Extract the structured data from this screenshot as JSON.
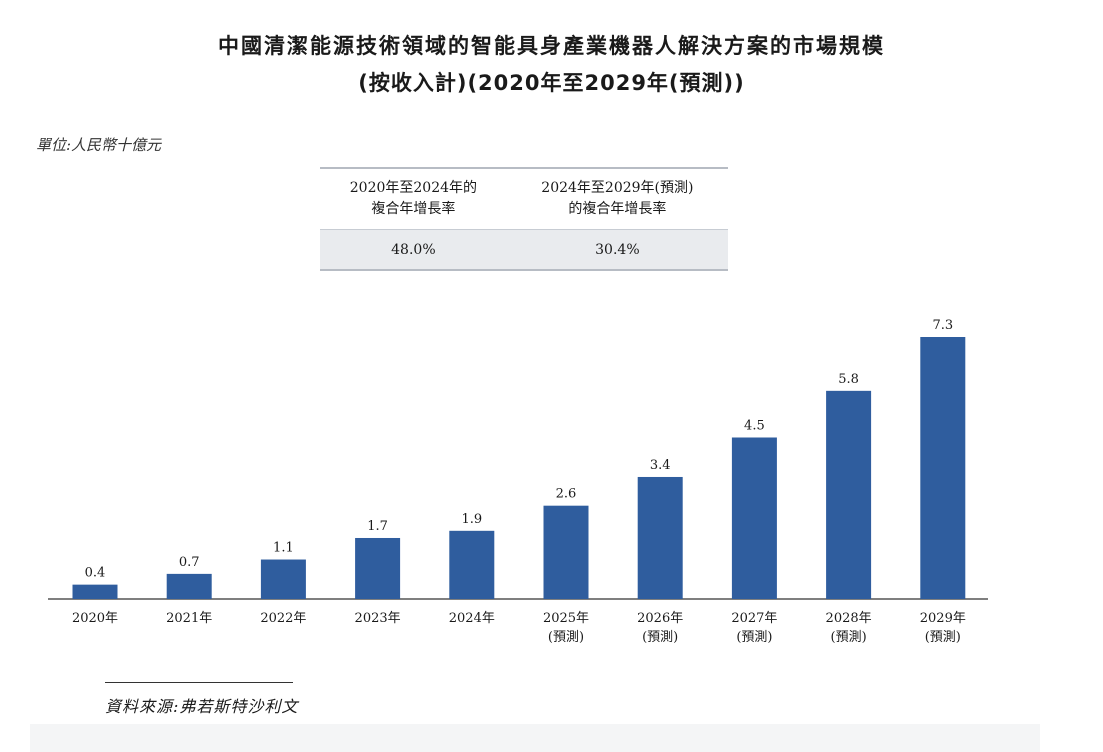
{
  "title_line1": "中國清潔能源技術領域的智能具身產業機器人解決方案的市場規模",
  "title_line2": "(按收入計)(2020年至2029年(預測))",
  "unit": "單位:人民幣十億元",
  "cagr_table": {
    "headers": [
      [
        "2020年至2024年的",
        "複合年增長率"
      ],
      [
        "2024年至2029年(預測)",
        "的複合年增長率"
      ]
    ],
    "values": [
      "48.0%",
      "30.4%"
    ]
  },
  "source": "資料來源:弗若斯特沙利文",
  "colors": {
    "bar": "#2f5d9e",
    "axis": "#333333"
  },
  "chart_data": {
    "type": "bar",
    "categories": [
      "2020年",
      "2021年",
      "2022年",
      "2023年",
      "2024年",
      "2025年",
      "2026年",
      "2027年",
      "2028年",
      "2029年"
    ],
    "category_sublabels": [
      "",
      "",
      "",
      "",
      "",
      "(預測)",
      "(預測)",
      "(預測)",
      "(預測)",
      "(預測)"
    ],
    "values": [
      0.4,
      0.7,
      1.1,
      1.7,
      1.9,
      2.6,
      3.4,
      4.5,
      5.8,
      7.3
    ],
    "value_labels": [
      "0.4",
      "0.7",
      "1.1",
      "1.7",
      "1.9",
      "2.6",
      "3.4",
      "4.5",
      "5.8",
      "7.3"
    ],
    "title": "中國清潔能源技術領域的智能具身產業機器人解決方案的市場規模",
    "ylabel": "單位:人民幣十億元",
    "ylim": [
      0,
      7.3
    ],
    "grid": false,
    "legend": "none"
  }
}
